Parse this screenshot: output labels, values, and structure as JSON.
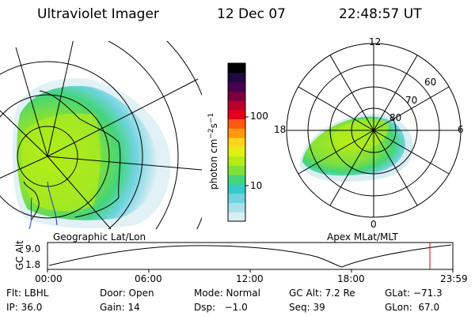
{
  "header": {
    "title": "Ultraviolet Imager",
    "date": "12 Dec 07",
    "time": "22:48:57 UT"
  },
  "colorbar": {
    "unit_label": "photon cm",
    "unit_exp1": "−2",
    "unit_mid": "s",
    "unit_exp2": "−1",
    "tick_100": "100",
    "tick_10": "10",
    "colors": [
      "#d9eef2",
      "#a9e1ea",
      "#6fd4e0",
      "#33ccc6",
      "#44d47a",
      "#7fe03c",
      "#b4ec18",
      "#e0ef16",
      "#ffd41c",
      "#ff9a0c",
      "#ff5a14",
      "#e4001c",
      "#b8002c",
      "#7a0040",
      "#480050",
      "#1e0a40",
      "#000000"
    ]
  },
  "left_panel": {
    "label": "Geographic Lat/Lon"
  },
  "right_panel": {
    "label": "Apex MLat/MLT",
    "mlt_12": "12",
    "mlt_18": "18",
    "mlt_6": "6",
    "mlt_0": "0",
    "lat_60": "60",
    "lat_70": "70",
    "lat_80": "80"
  },
  "altitude_plot": {
    "ylabel": "GC Alt",
    "y_top": "9.0",
    "y_bottom": "1.8",
    "x_ticks": [
      "00:00",
      "06:00",
      "12:00",
      "18:00",
      "23:59"
    ],
    "marker_color": "#e00000"
  },
  "info": {
    "flt": "Flt: LBHL",
    "ip": "IP: 36.0",
    "door": "Door: Open",
    "gain": "Gain: 14",
    "mode": "Mode: Normal",
    "dsp": "Dsp:   −1.0",
    "gcalt": "GC Alt: 7.2 Re",
    "seq": "Seq: 39",
    "glat": "GLat: −71.3",
    "glon": "GLon:  67.0"
  }
}
